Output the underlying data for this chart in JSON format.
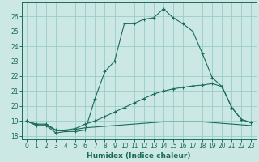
{
  "xlabel": "Humidex (Indice chaleur)",
  "background_color": "#cce8e4",
  "grid_color": "#99cccc",
  "line_color": "#1a6b5a",
  "xlim": [
    -0.5,
    23.5
  ],
  "ylim": [
    17.8,
    26.9
  ],
  "yticks": [
    18,
    19,
    20,
    21,
    22,
    23,
    24,
    25,
    26
  ],
  "xticks": [
    0,
    1,
    2,
    3,
    4,
    5,
    6,
    7,
    8,
    9,
    10,
    11,
    12,
    13,
    14,
    15,
    16,
    17,
    18,
    19,
    20,
    21,
    22,
    23
  ],
  "line1_x": [
    0,
    1,
    2,
    3,
    4,
    5,
    6,
    7,
    8,
    9,
    10,
    11,
    12,
    13,
    14,
    15,
    16,
    17,
    18,
    19,
    20,
    21,
    22,
    23
  ],
  "line1_y": [
    19.0,
    18.7,
    18.7,
    18.2,
    18.3,
    18.3,
    18.4,
    20.5,
    22.3,
    23.0,
    25.5,
    25.5,
    25.8,
    25.9,
    26.5,
    25.9,
    25.5,
    25.0,
    23.5,
    21.9,
    21.3,
    19.9,
    19.1,
    18.9
  ],
  "line2_x": [
    0,
    1,
    2,
    3,
    4,
    5,
    6,
    7,
    8,
    9,
    10,
    11,
    12,
    13,
    14,
    15,
    16,
    17,
    18,
    19,
    20,
    21,
    22,
    23
  ],
  "line2_y": [
    19.0,
    18.8,
    18.8,
    18.4,
    18.4,
    18.5,
    18.8,
    19.0,
    19.3,
    19.6,
    19.9,
    20.2,
    20.5,
    20.8,
    21.0,
    21.15,
    21.25,
    21.35,
    21.4,
    21.5,
    21.3,
    19.9,
    19.1,
    18.9
  ],
  "line3_x": [
    0,
    1,
    2,
    3,
    4,
    5,
    6,
    7,
    8,
    9,
    10,
    11,
    12,
    13,
    14,
    15,
    16,
    17,
    18,
    19,
    20,
    21,
    22,
    23
  ],
  "line3_y": [
    19.0,
    18.75,
    18.75,
    18.35,
    18.35,
    18.45,
    18.55,
    18.6,
    18.65,
    18.7,
    18.75,
    18.8,
    18.85,
    18.9,
    18.95,
    18.95,
    18.95,
    18.95,
    18.95,
    18.9,
    18.85,
    18.8,
    18.75,
    18.7
  ]
}
